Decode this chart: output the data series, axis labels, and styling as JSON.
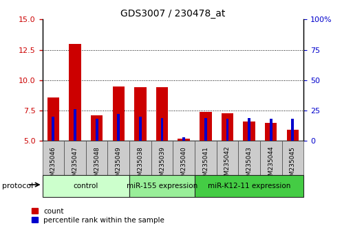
{
  "title": "GDS3007 / 230478_at",
  "categories": [
    "GSM235046",
    "GSM235047",
    "GSM235048",
    "GSM235049",
    "GSM235038",
    "GSM235039",
    "GSM235040",
    "GSM235041",
    "GSM235042",
    "GSM235043",
    "GSM235044",
    "GSM235045"
  ],
  "count_values": [
    8.6,
    13.0,
    7.1,
    9.5,
    9.4,
    9.4,
    5.2,
    7.4,
    7.3,
    6.6,
    6.5,
    5.9
  ],
  "percentile_values": [
    20,
    26,
    18,
    22,
    20,
    19,
    3,
    19,
    18,
    19,
    18,
    18
  ],
  "ylim_left": [
    5,
    15
  ],
  "ylim_right": [
    0,
    100
  ],
  "yticks_left": [
    5,
    7.5,
    10,
    12.5,
    15
  ],
  "yticks_right": [
    0,
    25,
    50,
    75,
    100
  ],
  "count_color": "#cc0000",
  "percentile_color": "#0000cc",
  "groups": [
    {
      "label": "control",
      "indices": [
        0,
        1,
        2,
        3
      ]
    },
    {
      "label": "miR-155 expression",
      "indices": [
        4,
        5,
        6
      ]
    },
    {
      "label": "miR-K12-11 expression",
      "indices": [
        7,
        8,
        9,
        10,
        11
      ]
    }
  ],
  "group_colors": [
    "#ccffcc",
    "#99ee99",
    "#44cc44"
  ],
  "protocol_label": "protocol",
  "legend_count": "count",
  "legend_percentile": "percentile rank within the sample",
  "bg_color": "#ffffff",
  "tick_color_left": "#cc0000",
  "tick_color_right": "#0000cc"
}
